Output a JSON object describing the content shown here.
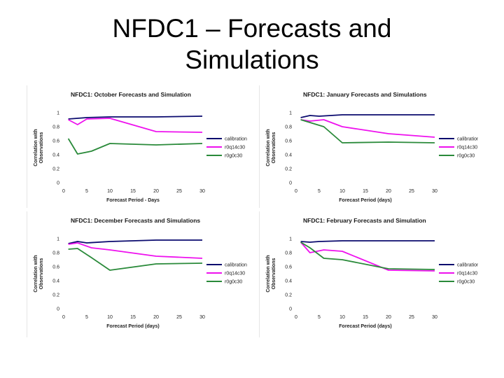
{
  "slide": {
    "title_line1": "NFDC1 – Forecasts and",
    "title_line2": "Simulations"
  },
  "colors": {
    "calibration": "#0a0a6e",
    "r0q14c30": "#ee11ee",
    "r0g0c30": "#2a8a3a"
  },
  "chart_data": [
    {
      "type": "line",
      "title": "NFDC1:  October Forecasts and Simulation",
      "xlabel": "Forecast Period - Days",
      "ylabel_line1": "Correlation with",
      "ylabel_line2": "Observations",
      "xlim": [
        0,
        30
      ],
      "ylim": [
        0,
        1
      ],
      "xticks": [
        "0",
        "5",
        "10",
        "15",
        "20",
        "25",
        "30"
      ],
      "yticks": [
        "0",
        "0.2",
        "0.4",
        "0.6",
        "0.8",
        "1"
      ],
      "series": [
        {
          "name": "calibration",
          "x": [
            1,
            3,
            5,
            10,
            20,
            30
          ],
          "values": [
            0.91,
            0.92,
            0.93,
            0.94,
            0.94,
            0.95
          ]
        },
        {
          "name": "r0q14c30",
          "x": [
            1,
            3,
            5,
            10,
            20,
            30
          ],
          "values": [
            0.9,
            0.83,
            0.91,
            0.92,
            0.73,
            0.72
          ]
        },
        {
          "name": "r0g0c30",
          "x": [
            1,
            3,
            6,
            10,
            20,
            30
          ],
          "values": [
            0.63,
            0.41,
            0.45,
            0.56,
            0.54,
            0.56
          ]
        }
      ]
    },
    {
      "type": "line",
      "title": "NFDC1:  January Forecasts and Simulations",
      "xlabel": "Forecast Period (days)",
      "ylabel_line1": "Correlation with",
      "ylabel_line2": "Observations",
      "xlim": [
        0,
        30
      ],
      "ylim": [
        0,
        1
      ],
      "xticks": [
        "0",
        "5",
        "10",
        "15",
        "20",
        "25",
        "30"
      ],
      "yticks": [
        "0",
        "0.2",
        "0.4",
        "0.6",
        "0.8",
        "1"
      ],
      "series": [
        {
          "name": "calibration",
          "x": [
            1,
            3,
            5,
            10,
            20,
            30
          ],
          "values": [
            0.93,
            0.96,
            0.95,
            0.97,
            0.97,
            0.97
          ]
        },
        {
          "name": "r0q14c30",
          "x": [
            1,
            3,
            6,
            10,
            20,
            30
          ],
          "values": [
            0.9,
            0.88,
            0.9,
            0.8,
            0.7,
            0.65
          ]
        },
        {
          "name": "r0g0c30",
          "x": [
            1,
            3,
            6,
            10,
            20,
            30
          ],
          "values": [
            0.9,
            0.86,
            0.8,
            0.57,
            0.58,
            0.57
          ]
        }
      ]
    },
    {
      "type": "line",
      "title": "NFDC1:  December Forecasts and Simulations",
      "xlabel": "Forecast Period (days)",
      "ylabel_line1": "Correlation with",
      "ylabel_line2": "Observations",
      "xlim": [
        0,
        30
      ],
      "ylim": [
        0,
        1
      ],
      "xticks": [
        "0",
        "5",
        "10",
        "15",
        "20",
        "25",
        "30"
      ],
      "yticks": [
        "0",
        "0.2",
        "0.4",
        "0.6",
        "0.8",
        "1"
      ],
      "series": [
        {
          "name": "calibration",
          "x": [
            1,
            3,
            5,
            10,
            20,
            30
          ],
          "values": [
            0.93,
            0.96,
            0.94,
            0.96,
            0.98,
            0.98
          ]
        },
        {
          "name": "r0q14c30",
          "x": [
            1,
            3,
            6,
            10,
            20,
            30
          ],
          "values": [
            0.92,
            0.94,
            0.87,
            0.84,
            0.75,
            0.72
          ]
        },
        {
          "name": "r0g0c30",
          "x": [
            1,
            3,
            6,
            10,
            20,
            30
          ],
          "values": [
            0.85,
            0.86,
            0.73,
            0.55,
            0.64,
            0.65
          ]
        }
      ]
    },
    {
      "type": "line",
      "title": "NFDC1:  February Forecasts and Simulation",
      "xlabel": "Forecast Period (days)",
      "ylabel_line1": "Correlation with",
      "ylabel_line2": "Observations",
      "xlim": [
        0,
        30
      ],
      "ylim": [
        0,
        1
      ],
      "xticks": [
        "0",
        "5",
        "10",
        "15",
        "20",
        "25",
        "30"
      ],
      "yticks": [
        "0",
        "0.2",
        "0.4",
        "0.6",
        "0.8",
        "1"
      ],
      "series": [
        {
          "name": "calibration",
          "x": [
            1,
            3,
            5,
            10,
            20,
            30
          ],
          "values": [
            0.96,
            0.95,
            0.96,
            0.97,
            0.97,
            0.97
          ]
        },
        {
          "name": "r0q14c30",
          "x": [
            1,
            3,
            6,
            10,
            20,
            30
          ],
          "values": [
            0.95,
            0.8,
            0.84,
            0.82,
            0.55,
            0.54
          ]
        },
        {
          "name": "r0g0c30",
          "x": [
            1,
            3,
            6,
            10,
            20,
            30
          ],
          "values": [
            0.95,
            0.87,
            0.72,
            0.7,
            0.57,
            0.56
          ]
        }
      ]
    }
  ]
}
